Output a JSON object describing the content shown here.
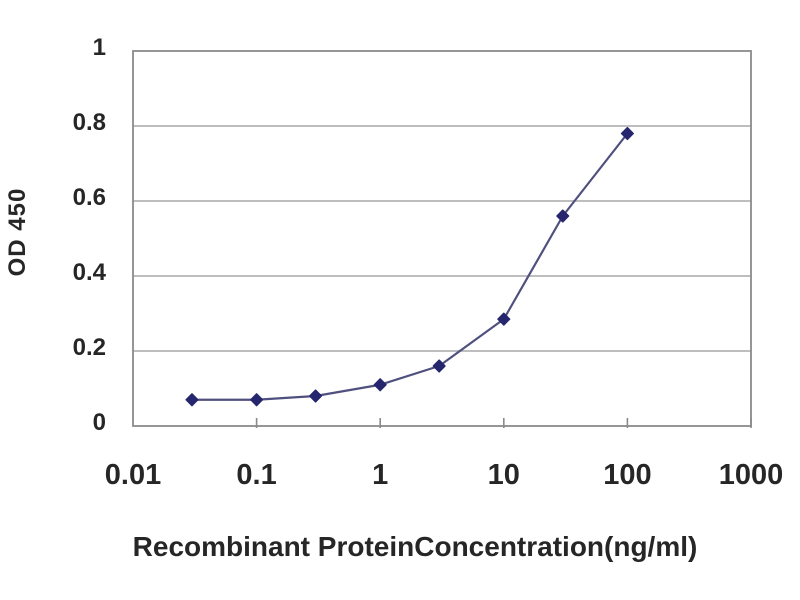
{
  "chart_data": {
    "type": "line",
    "title": "",
    "xlabel": "Recombinant ProteinConcentration(ng/ml)",
    "ylabel": "OD 450",
    "x_scale": "log",
    "x": [
      0.03,
      0.1,
      0.3,
      1,
      3,
      10,
      30,
      100
    ],
    "series": [
      {
        "name": "OD 450",
        "values": [
          0.07,
          0.07,
          0.08,
          0.11,
          0.16,
          0.285,
          0.56,
          0.78
        ]
      }
    ],
    "x_ticks": [
      "0.01",
      "0.1",
      "1",
      "10",
      "100",
      "1000"
    ],
    "x_tick_values": [
      0.01,
      0.1,
      1,
      10,
      100,
      1000
    ],
    "y_ticks": [
      "0",
      "0.2",
      "0.4",
      "0.6",
      "0.8",
      "1"
    ],
    "y_tick_values": [
      0,
      0.2,
      0.4,
      0.6,
      0.8,
      1
    ],
    "xlim": [
      0.01,
      1000
    ],
    "ylim": [
      0,
      1
    ],
    "grid": "horizontal-only",
    "legend": "none",
    "marker": "diamond",
    "colors": {
      "marker": "#26266e",
      "line": "#50507f",
      "grid": "#a8a8a8",
      "border": "#8a8a8a",
      "text": "#262626",
      "background": "#ffffff"
    }
  }
}
